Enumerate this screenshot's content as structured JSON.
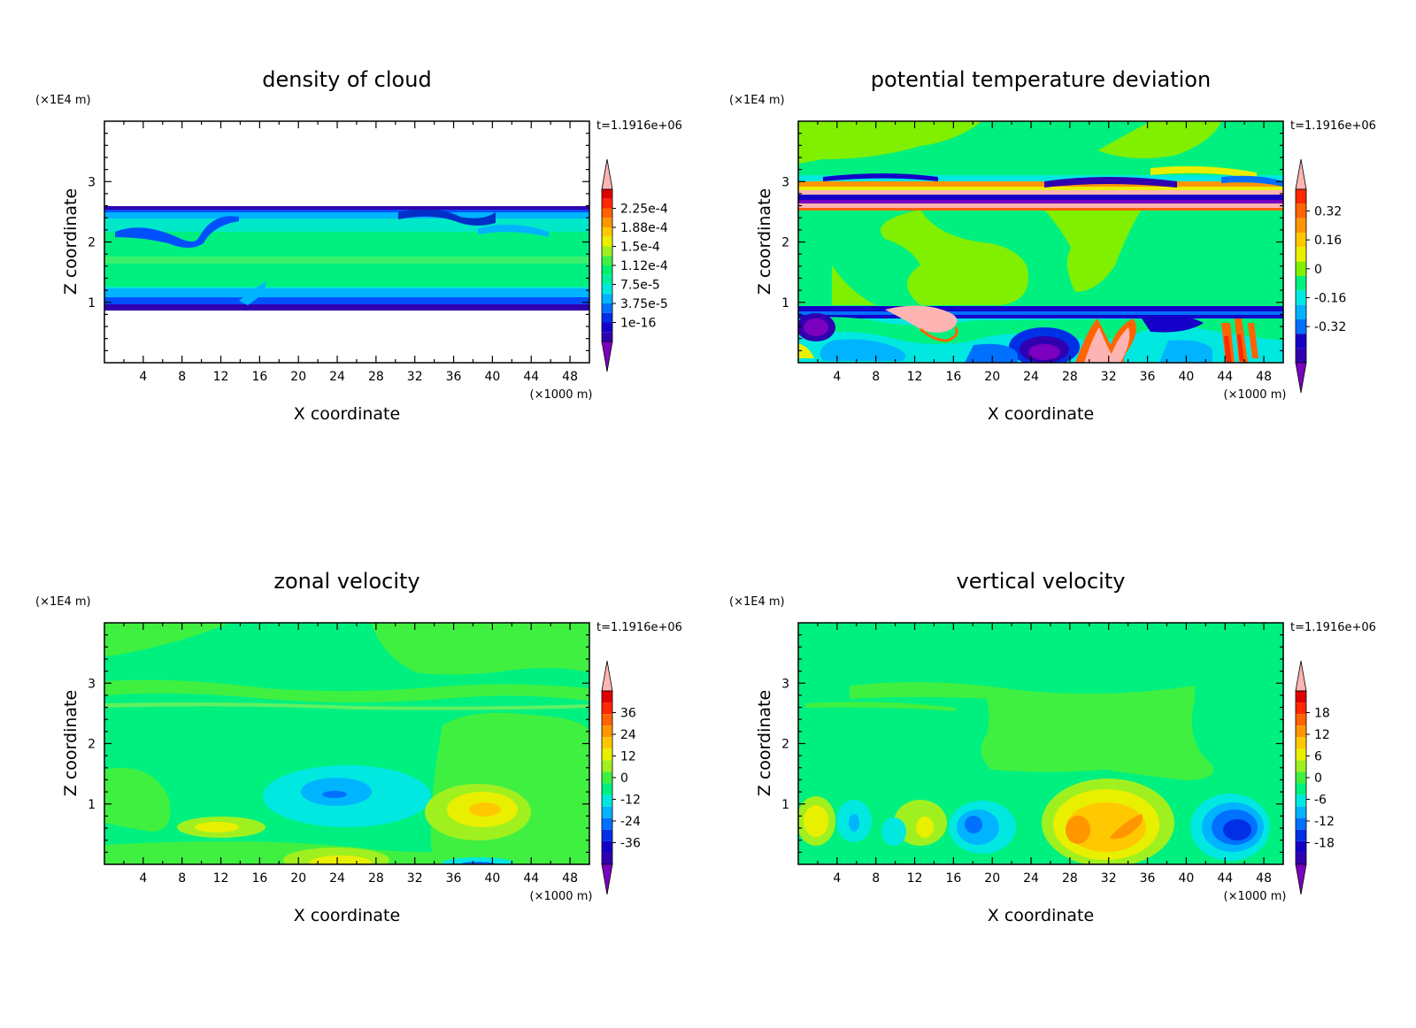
{
  "figure": {
    "panels": [
      {
        "title": "density of cloud",
        "y_scale_label": "(×1E4 m)",
        "x_scale_label": "(×1000 m)",
        "time_label": "t=1.1916e+06",
        "xlabel": "X coordinate",
        "ylabel": "Z coordinate",
        "xticks": [
          "4",
          "8",
          "12",
          "16",
          "20",
          "24",
          "28",
          "32",
          "36",
          "40",
          "44",
          "48"
        ],
        "yticks": [
          "1",
          "2",
          "3"
        ],
        "colorbar_labels": [
          "2.25e-4",
          "1.88e-4",
          "1.5e-4",
          "1.12e-4",
          "7.5e-5",
          "3.75e-5",
          "1e-16"
        ]
      },
      {
        "title": "potential temperature deviation",
        "y_scale_label": "(×1E4 m)",
        "x_scale_label": "(×1000 m)",
        "time_label": "t=1.1916e+06",
        "xlabel": "X coordinate",
        "ylabel": "Z coordinate",
        "xticks": [
          "4",
          "8",
          "12",
          "16",
          "20",
          "24",
          "28",
          "32",
          "36",
          "40",
          "44",
          "48"
        ],
        "yticks": [
          "1",
          "2",
          "3"
        ],
        "colorbar_labels": [
          "0.32",
          "0.16",
          "0",
          "-0.16",
          "-0.32"
        ]
      },
      {
        "title": "zonal velocity",
        "y_scale_label": "(×1E4 m)",
        "x_scale_label": "(×1000 m)",
        "time_label": "t=1.1916e+06",
        "xlabel": "X coordinate",
        "ylabel": "Z coordinate",
        "xticks": [
          "4",
          "8",
          "12",
          "16",
          "20",
          "24",
          "28",
          "32",
          "36",
          "40",
          "44",
          "48"
        ],
        "yticks": [
          "1",
          "2",
          "3"
        ],
        "colorbar_labels": [
          "36",
          "24",
          "12",
          "0",
          "-12",
          "-24",
          "-36"
        ]
      },
      {
        "title": "vertical velocity",
        "y_scale_label": "(×1E4 m)",
        "x_scale_label": "(×1000 m)",
        "time_label": "t=1.1916e+06",
        "xlabel": "X coordinate",
        "ylabel": "Z coordinate",
        "xticks": [
          "4",
          "8",
          "12",
          "16",
          "20",
          "24",
          "28",
          "32",
          "36",
          "40",
          "44",
          "48"
        ],
        "yticks": [
          "1",
          "2",
          "3"
        ],
        "colorbar_labels": [
          "18",
          "12",
          "6",
          "0",
          "-6",
          "-12",
          "-18"
        ]
      }
    ]
  },
  "chart_data": [
    {
      "type": "heatmap",
      "title": "density of cloud",
      "xlabel": "X coordinate",
      "ylabel": "Z coordinate",
      "x_units": "×1000 m",
      "y_units": "×1E4 m",
      "xlim": [
        0,
        50
      ],
      "ylim": [
        0,
        4
      ],
      "color_levels": [
        1e-16,
        3.75e-05,
        7.5e-05,
        0.000112,
        0.00015,
        0.000188,
        0.000225
      ],
      "features": [
        {
          "kind": "cloud_layer",
          "z_range": [
            0.9,
            2.6
          ],
          "value": "1.12e-4 to 1.5e-4 interior, 1e-16 to 7.5e-5 at edges"
        },
        {
          "kind": "clear_air",
          "z_range": [
            0,
            0.9
          ],
          "value": "none"
        },
        {
          "kind": "clear_air",
          "z_range": [
            2.6,
            4
          ],
          "value": "none"
        }
      ]
    },
    {
      "type": "heatmap",
      "title": "potential temperature deviation",
      "xlabel": "X coordinate",
      "ylabel": "Z coordinate",
      "x_units": "×1000 m",
      "y_units": "×1E4 m",
      "xlim": [
        0,
        50
      ],
      "ylim": [
        0,
        4
      ],
      "color_levels": [
        -0.32,
        -0.16,
        0,
        0.16,
        0.32
      ],
      "features": [
        {
          "kind": "background",
          "value": 0
        },
        {
          "kind": "banded_layer",
          "z_range": [
            2.6,
            3.05
          ],
          "value": "alternating -0.32 to 0.32"
        },
        {
          "kind": "warm_plume",
          "x": 30,
          "z": 0.2,
          "value": 0.32
        },
        {
          "kind": "warm_plume",
          "x": 11,
          "z": 0.75,
          "value": 0.32
        },
        {
          "kind": "cold_cell",
          "x": 25,
          "z": 0.3,
          "value": -0.32
        },
        {
          "kind": "cold_cell",
          "x": 4,
          "z": 0.6,
          "value": -0.32
        },
        {
          "kind": "warm_cells",
          "x": 44,
          "z": 0.4,
          "value": 0.24
        }
      ]
    },
    {
      "type": "heatmap",
      "title": "zonal velocity",
      "xlabel": "X coordinate",
      "ylabel": "Z coordinate",
      "x_units": "×1000 m",
      "y_units": "×1E4 m",
      "xlim": [
        0,
        50
      ],
      "ylim": [
        0,
        4
      ],
      "color_levels": [
        -36,
        -24,
        -12,
        0,
        12,
        24,
        36
      ],
      "features": [
        {
          "kind": "background",
          "value": -6
        },
        {
          "kind": "positive_jet",
          "x": 38,
          "z": 0.8,
          "value": 12
        },
        {
          "kind": "positive_jet",
          "x": 10,
          "z": 0.6,
          "value": 8
        },
        {
          "kind": "positive_surface",
          "x": 24,
          "z": 0.1,
          "value": 12
        },
        {
          "kind": "negative_core",
          "x": 24,
          "z": 1.0,
          "value": -16
        },
        {
          "kind": "negative_surface",
          "x": 38,
          "z": 0.05,
          "value": -14
        }
      ]
    },
    {
      "type": "heatmap",
      "title": "vertical velocity",
      "xlabel": "X coordinate",
      "ylabel": "Z coordinate",
      "x_units": "×1000 m",
      "y_units": "×1E4 m",
      "xlim": [
        0,
        50
      ],
      "ylim": [
        0,
        4
      ],
      "color_levels": [
        -18,
        -12,
        -6,
        0,
        6,
        12,
        18
      ],
      "features": [
        {
          "kind": "background",
          "value": 0
        },
        {
          "kind": "updraft",
          "x": 30,
          "z": 0.6,
          "value": 14
        },
        {
          "kind": "updraft",
          "x": 2,
          "z": 0.7,
          "value": 6
        },
        {
          "kind": "downdraft",
          "x": 44,
          "z": 0.6,
          "value": -14
        },
        {
          "kind": "downdraft",
          "x": 19,
          "z": 0.6,
          "value": -10
        },
        {
          "kind": "downdraft",
          "x": 6,
          "z": 0.6,
          "value": -6
        }
      ]
    }
  ]
}
